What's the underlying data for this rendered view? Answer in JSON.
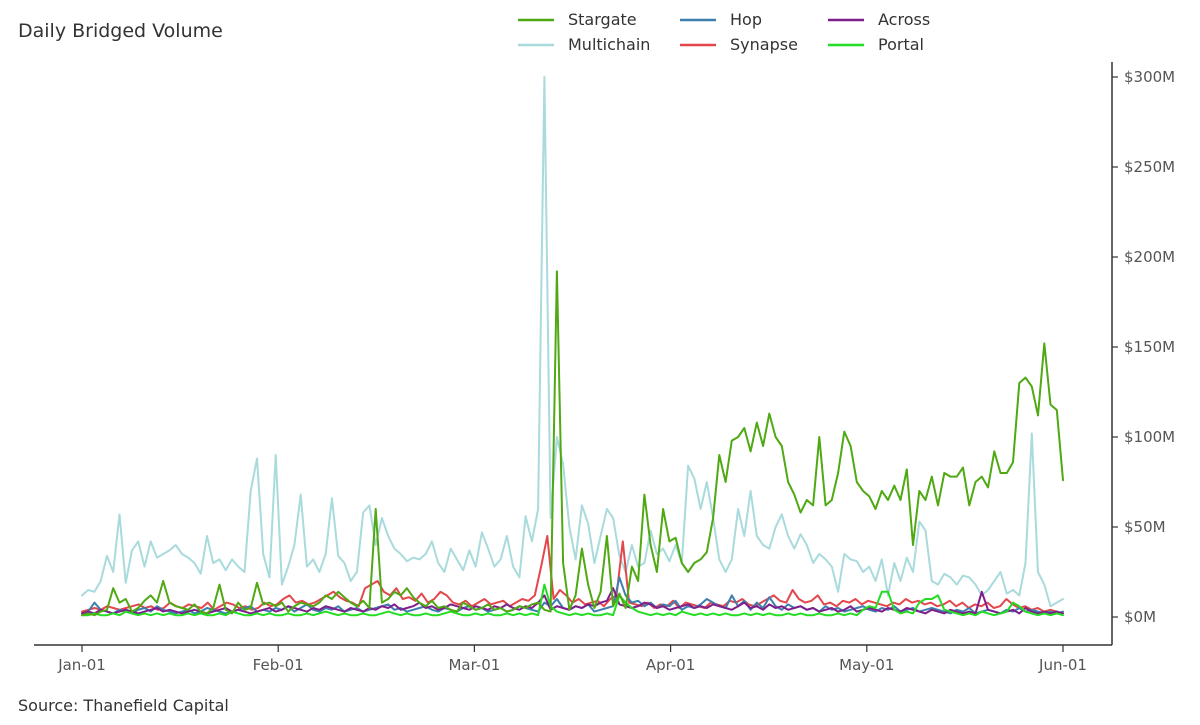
{
  "chart_data": {
    "type": "line",
    "title": "Daily Bridged Volume",
    "source": "Source: Thanefield Capital",
    "xlabel": "",
    "ylabel": "",
    "x_start": "2023-01-01",
    "x_ticks": [
      "Jan-01",
      "Feb-01",
      "Mar-01",
      "Apr-01",
      "May-01",
      "Jun-01"
    ],
    "y_ticks": [
      "$0M",
      "$50M",
      "$100M",
      "$150M",
      "$200M",
      "$250M",
      "$300M"
    ],
    "ylim": [
      0,
      300
    ],
    "y_axis_position": "right",
    "grid": false,
    "legend_position": "top",
    "series": [
      {
        "name": "Stargate",
        "color": "#4fa912",
        "values": [
          1,
          2,
          1,
          3,
          4,
          16,
          8,
          10,
          3,
          5,
          9,
          12,
          8,
          20,
          8,
          6,
          5,
          4,
          7,
          3,
          2,
          5,
          18,
          4,
          2,
          8,
          4,
          5,
          19,
          7,
          8,
          6,
          8,
          3,
          6,
          8,
          7,
          6,
          8,
          12,
          10,
          14,
          11,
          8,
          6,
          9,
          5,
          60,
          8,
          10,
          14,
          12,
          16,
          11,
          8,
          6,
          9,
          5,
          6,
          4,
          3,
          8,
          6,
          4,
          5,
          7,
          4,
          5,
          3,
          4,
          6,
          5,
          7,
          8,
          4,
          3,
          192,
          30,
          4,
          12,
          38,
          18,
          5,
          14,
          45,
          6,
          13,
          5,
          28,
          20,
          68,
          40,
          25,
          60,
          42,
          44,
          30,
          25,
          30,
          32,
          36,
          55,
          90,
          75,
          98,
          100,
          105,
          92,
          108,
          95,
          113,
          100,
          95,
          75,
          68,
          58,
          65,
          62,
          100,
          62,
          65,
          80,
          103,
          95,
          75,
          70,
          67,
          60,
          70,
          65,
          73,
          65,
          82,
          40,
          70,
          65,
          78,
          62,
          80,
          78,
          78,
          83,
          62,
          75,
          78,
          72,
          92,
          80,
          80,
          86,
          130,
          133,
          128,
          112,
          152,
          118,
          115,
          76
        ]
      },
      {
        "name": "Multichain",
        "color": "#a9dadc",
        "values": [
          12,
          15,
          14,
          20,
          34,
          25,
          57,
          19,
          37,
          42,
          28,
          42,
          33,
          35,
          37,
          40,
          35,
          33,
          30,
          24,
          45,
          30,
          32,
          26,
          32,
          28,
          25,
          70,
          88,
          35,
          22,
          90,
          18,
          28,
          40,
          68,
          28,
          32,
          25,
          35,
          66,
          34,
          30,
          20,
          25,
          58,
          62,
          40,
          55,
          45,
          38,
          35,
          31,
          33,
          32,
          35,
          42,
          30,
          25,
          38,
          32,
          26,
          37,
          28,
          47,
          38,
          28,
          32,
          45,
          28,
          22,
          56,
          42,
          60,
          300,
          55,
          100,
          85,
          50,
          32,
          62,
          52,
          30,
          45,
          60,
          55,
          34,
          25,
          40,
          28,
          30,
          48,
          35,
          38,
          31,
          40,
          30,
          84,
          77,
          60,
          75,
          55,
          32,
          25,
          32,
          60,
          45,
          70,
          45,
          40,
          38,
          50,
          57,
          45,
          38,
          46,
          40,
          30,
          35,
          32,
          28,
          14,
          35,
          32,
          31,
          25,
          28,
          20,
          32,
          12,
          30,
          20,
          33,
          25,
          53,
          48,
          20,
          18,
          24,
          22,
          18,
          23,
          22,
          18,
          12,
          15,
          20,
          25,
          13,
          15,
          12,
          30,
          102,
          25,
          18,
          6,
          8,
          10
        ]
      },
      {
        "name": "Hop",
        "color": "#3e7fb0",
        "values": [
          2,
          3,
          8,
          4,
          3,
          2,
          4,
          3,
          2,
          4,
          5,
          3,
          6,
          4,
          3,
          2,
          3,
          4,
          2,
          3,
          5,
          4,
          3,
          2,
          3,
          4,
          5,
          6,
          3,
          4,
          3,
          5,
          4,
          6,
          3,
          5,
          7,
          4,
          3,
          5,
          4,
          6,
          3,
          4,
          5,
          3,
          4,
          5,
          6,
          7,
          4,
          5,
          3,
          4,
          5,
          6,
          4,
          3,
          5,
          4,
          3,
          5,
          6,
          4,
          5,
          3,
          4,
          5,
          3,
          4,
          6,
          5,
          4,
          3,
          8,
          6,
          10,
          5,
          4,
          6,
          5,
          7,
          3,
          4,
          5,
          6,
          22,
          12,
          8,
          9,
          6,
          8,
          5,
          7,
          6,
          9,
          4,
          6,
          5,
          7,
          10,
          8,
          6,
          5,
          12,
          6,
          9,
          4,
          8,
          5,
          11,
          6,
          4,
          7,
          5,
          6,
          4,
          5,
          3,
          6,
          4,
          5,
          3,
          4,
          5,
          6,
          4,
          3,
          5,
          4,
          6,
          3,
          4,
          5,
          3,
          4,
          5,
          4,
          3,
          2,
          4,
          3,
          5,
          2,
          3,
          4,
          3,
          2,
          4,
          3,
          5,
          3,
          4,
          3,
          2,
          3,
          2,
          3
        ]
      },
      {
        "name": "Synapse",
        "color": "#e2474c",
        "values": [
          3,
          4,
          5,
          4,
          6,
          5,
          4,
          5,
          6,
          7,
          5,
          6,
          4,
          5,
          8,
          6,
          5,
          7,
          6,
          5,
          8,
          4,
          6,
          8,
          7,
          5,
          6,
          4,
          5,
          8,
          6,
          7,
          10,
          12,
          8,
          9,
          7,
          8,
          10,
          12,
          14,
          11,
          9,
          8,
          6,
          16,
          18,
          20,
          14,
          12,
          16,
          10,
          11,
          9,
          13,
          8,
          10,
          14,
          12,
          8,
          7,
          9,
          6,
          8,
          10,
          7,
          8,
          9,
          6,
          8,
          10,
          9,
          12,
          28,
          45,
          10,
          15,
          12,
          8,
          10,
          7,
          8,
          9,
          6,
          10,
          12,
          42,
          8,
          7,
          6,
          8,
          5,
          7,
          6,
          9,
          5,
          8,
          7,
          6,
          5,
          8,
          7,
          6,
          9,
          8,
          10,
          7,
          6,
          8,
          10,
          12,
          9,
          8,
          15,
          10,
          8,
          9,
          12,
          7,
          8,
          6,
          9,
          8,
          10,
          7,
          9,
          8,
          7,
          6,
          8,
          7,
          10,
          8,
          9,
          7,
          8,
          6,
          7,
          9,
          6,
          8,
          5,
          7,
          6,
          8,
          5,
          6,
          10,
          7,
          5,
          6,
          4,
          5,
          3,
          4,
          3,
          2
        ]
      },
      {
        "name": "Across",
        "color": "#7f1f8c",
        "values": [
          2,
          3,
          2,
          4,
          3,
          2,
          3,
          4,
          3,
          2,
          3,
          4,
          5,
          3,
          4,
          3,
          2,
          3,
          4,
          3,
          2,
          3,
          4,
          5,
          3,
          4,
          3,
          2,
          3,
          4,
          5,
          3,
          4,
          6,
          5,
          4,
          3,
          5,
          4,
          6,
          5,
          4,
          3,
          5,
          4,
          3,
          5,
          4,
          6,
          5,
          7,
          4,
          5,
          6,
          8,
          5,
          6,
          4,
          5,
          7,
          6,
          5,
          4,
          6,
          5,
          4,
          6,
          5,
          7,
          5,
          4,
          6,
          5,
          8,
          12,
          4,
          6,
          5,
          4,
          6,
          5,
          7,
          6,
          8,
          9,
          16,
          7,
          6,
          5,
          6,
          8,
          7,
          5,
          6,
          4,
          5,
          6,
          7,
          5,
          6,
          5,
          7,
          6,
          5,
          4,
          6,
          8,
          5,
          6,
          4,
          7,
          5,
          6,
          4,
          5,
          6,
          4,
          5,
          3,
          4,
          5,
          3,
          4,
          6,
          3,
          4,
          5,
          4,
          3,
          5,
          4,
          3,
          5,
          4,
          3,
          2,
          4,
          3,
          2,
          4,
          3,
          2,
          3,
          2,
          14,
          4,
          3,
          2,
          3,
          4,
          2,
          5,
          3,
          2,
          3,
          2,
          3,
          2
        ]
      },
      {
        "name": "Portal",
        "color": "#22dd22",
        "values": [
          1,
          1,
          2,
          1,
          1,
          2,
          1,
          3,
          2,
          1,
          2,
          1,
          2,
          1,
          2,
          1,
          1,
          2,
          1,
          2,
          1,
          1,
          2,
          1,
          3,
          2,
          1,
          1,
          2,
          1,
          2,
          1,
          1,
          2,
          1,
          1,
          2,
          1,
          2,
          3,
          2,
          1,
          2,
          1,
          1,
          2,
          1,
          1,
          2,
          3,
          2,
          1,
          2,
          1,
          1,
          2,
          1,
          1,
          2,
          3,
          2,
          1,
          1,
          2,
          1,
          2,
          1,
          1,
          2,
          1,
          2,
          1,
          2,
          1,
          18,
          6,
          3,
          2,
          1,
          2,
          1,
          2,
          1,
          1,
          2,
          1,
          12,
          8,
          5,
          3,
          2,
          1,
          2,
          1,
          2,
          1,
          3,
          2,
          1,
          2,
          1,
          2,
          1,
          2,
          1,
          1,
          2,
          1,
          2,
          1,
          2,
          1,
          1,
          2,
          1,
          2,
          1,
          1,
          2,
          1,
          1,
          2,
          1,
          2,
          1,
          4,
          6,
          5,
          14,
          14,
          4,
          2,
          3,
          2,
          8,
          10,
          10,
          12,
          4,
          3,
          2,
          1,
          2,
          1,
          3,
          2,
          1,
          2,
          3,
          8,
          6,
          3,
          2,
          1,
          2,
          1,
          2,
          1
        ]
      }
    ]
  }
}
